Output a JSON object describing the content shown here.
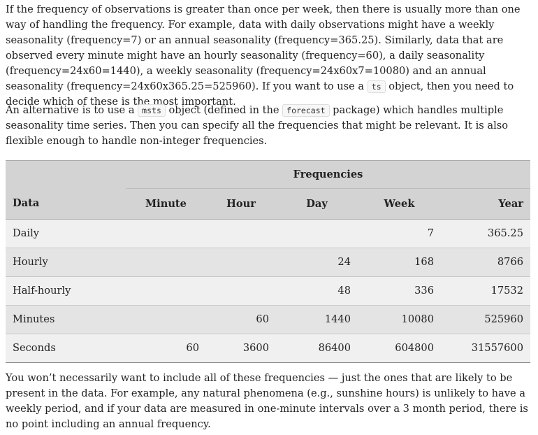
{
  "paragraph1": {
    "text_before_code": "If the frequency of observations is greater than once per week, then there is usually more than one way of handling the frequency. For example, data with daily observations might have a weekly seasonality (frequency=7) or an annual seasonality (frequency=365.25). Similarly, data that are observed every minute might have an hourly seasonality (frequency=60), a daily seasonality (frequency=24x60=1440), a weekly seasonality (frequency=24x60x7=10080) and an annual seasonality (frequency=24x60x365.25=525960). If you want to use a ",
    "code": "ts",
    "text_after_code": " object, then you need to decide which of these is the most important."
  },
  "paragraph2": {
    "text1": "An alternative is to use a ",
    "code1": "msts",
    "text2": " object (defined in the ",
    "code2": "forecast",
    "text3": " package) which handles multiple seasonality time series. Then you can specify all the frequencies that might be relevant. It is also flexible enough to handle non-integer frequencies."
  },
  "table": {
    "group_header": "Frequencies",
    "columns": [
      "Data",
      "Minute",
      "Hour",
      "Day",
      "Week",
      "Year"
    ],
    "rows": [
      [
        "Daily",
        "",
        "",
        "",
        "7",
        "365.25"
      ],
      [
        "Hourly",
        "",
        "",
        "24",
        "168",
        "8766"
      ],
      [
        "Half-hourly",
        "",
        "",
        "48",
        "336",
        "17532"
      ],
      [
        "Minutes",
        "",
        "60",
        "1440",
        "10080",
        "525960"
      ],
      [
        "Seconds",
        "60",
        "3600",
        "86400",
        "604800",
        "31557600"
      ]
    ]
  },
  "paragraph3": {
    "text": "You won’t necessarily want to include all of these frequencies — just the ones that are likely to be present in the data. For example, any natural phenomena (e.g., sunshine hours) is unlikely to have a weekly period, and if your data are measured in one-minute intervals over a 3 month period, there is no point including an annual frequency."
  }
}
